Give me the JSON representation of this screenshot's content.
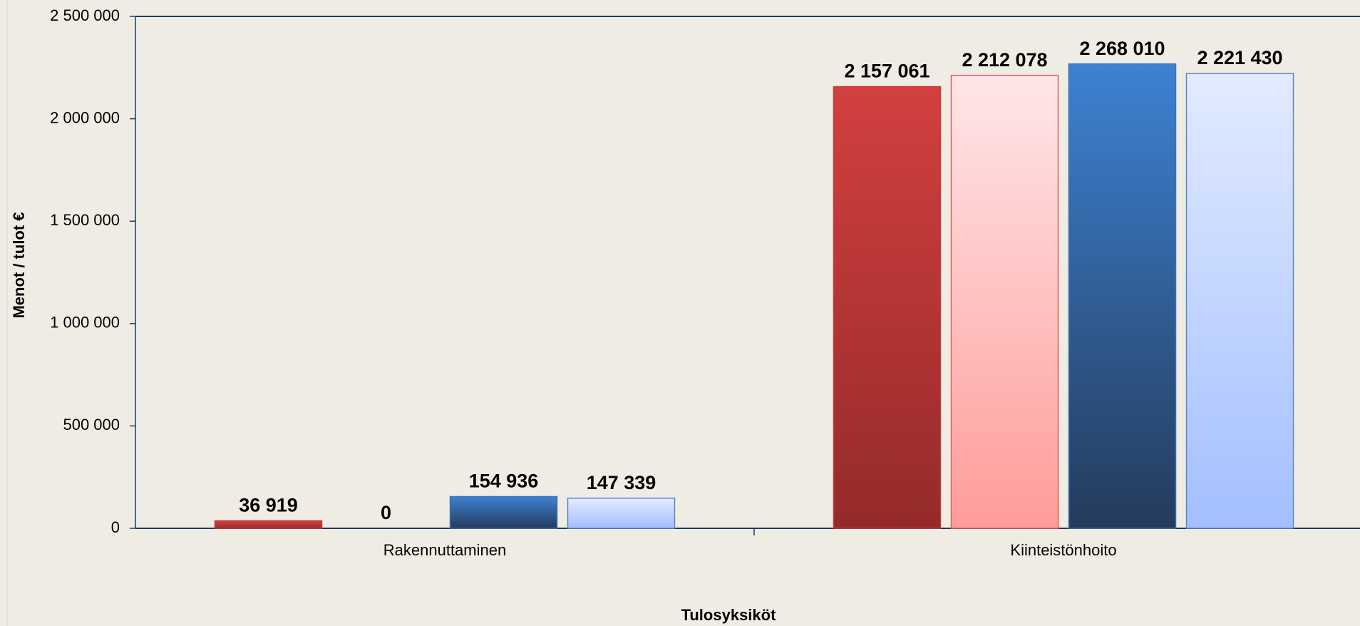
{
  "chart_data": {
    "type": "bar",
    "x_label": "Tulosyksiköt",
    "y_label": "Menot / tulot €",
    "categories": [
      "Rakennuttaminen",
      "Kiinteistönhoito"
    ],
    "series": [
      {
        "color": "#c73a3a",
        "values": [
          36919,
          2157061
        ],
        "value_labels": [
          "36 919",
          "2 157 061"
        ]
      },
      {
        "color": "#e05c5c",
        "values": [
          0,
          2212078
        ],
        "value_labels": [
          "0",
          "2 212 078"
        ]
      },
      {
        "color": "#3a72b8",
        "values": [
          154936,
          2268010
        ],
        "value_labels": [
          "154 936",
          "2 268 010"
        ]
      },
      {
        "color": "#5a86c8",
        "values": [
          147339,
          2221430
        ],
        "value_labels": [
          "147 339",
          "2 221 430"
        ]
      }
    ],
    "ylim": [
      0,
      2500000
    ],
    "yticks": [
      0,
      {
        "value": 500000,
        "label": "500 000"
      },
      {
        "value": 1000000,
        "label": "1 000 000"
      },
      {
        "value": 1500000,
        "label": "1 500 000"
      },
      {
        "value": 2000000,
        "label": "2 000 000"
      },
      {
        "value": 2500000,
        "label": "2 500 000"
      }
    ]
  }
}
